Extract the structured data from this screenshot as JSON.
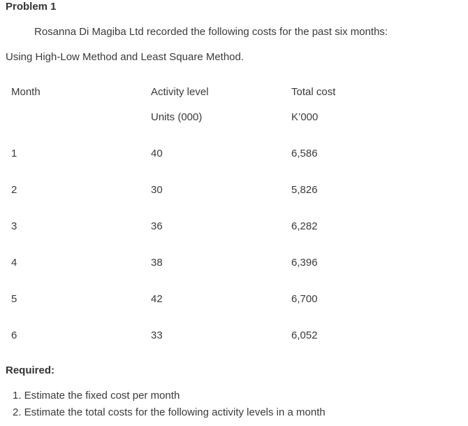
{
  "problem": {
    "title": "Problem 1",
    "intro": "Rosanna Di Magiba Ltd recorded the following costs for the past six months:",
    "method": "Using High-Low Method and Least Square Method."
  },
  "table": {
    "headers": {
      "month": "Month",
      "activity": "Activity level",
      "activity_unit": "Units (000)",
      "cost": "Total cost",
      "cost_unit": "K’000"
    },
    "rows": [
      {
        "month": "1",
        "activity": "40",
        "cost": "6,586"
      },
      {
        "month": "2",
        "activity": "30",
        "cost": "5,826"
      },
      {
        "month": "3",
        "activity": "36",
        "cost": "6,282"
      },
      {
        "month": "4",
        "activity": "38",
        "cost": "6,396"
      },
      {
        "month": "5",
        "activity": "42",
        "cost": "6,700"
      },
      {
        "month": "6",
        "activity": "33",
        "cost": "6,052"
      }
    ]
  },
  "required": {
    "label": "Required:",
    "items": [
      "1. Estimate the fixed cost per month",
      "2. Estimate the total costs for the following activity levels in a month"
    ]
  }
}
